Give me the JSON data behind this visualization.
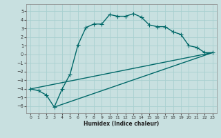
{
  "xlabel": "Humidex (Indice chaleur)",
  "bg_color": "#c8e0e0",
  "grid_color": "#a8d0d0",
  "line_color": "#006868",
  "xlim": [
    -0.5,
    23.5
  ],
  "ylim": [
    -6.8,
    5.8
  ],
  "xticks": [
    0,
    1,
    2,
    3,
    4,
    5,
    6,
    7,
    8,
    9,
    10,
    11,
    12,
    13,
    14,
    15,
    16,
    17,
    18,
    19,
    20,
    21,
    22,
    23
  ],
  "yticks": [
    -6,
    -5,
    -4,
    -3,
    -2,
    -1,
    0,
    1,
    2,
    3,
    4,
    5
  ],
  "series1_x": [
    0,
    1,
    2,
    3,
    4,
    5,
    6,
    7,
    8,
    9,
    10,
    11,
    12,
    13,
    14,
    15,
    16,
    17,
    18,
    19,
    20,
    21,
    22,
    23
  ],
  "series1_y": [
    -4.0,
    -4.2,
    -4.7,
    -6.1,
    -4.0,
    -2.3,
    1.1,
    3.1,
    3.5,
    3.5,
    4.6,
    4.4,
    4.4,
    4.7,
    4.3,
    3.4,
    3.2,
    3.2,
    2.6,
    2.3,
    1.0,
    0.8,
    0.2,
    0.2
  ],
  "series2_x": [
    0,
    23
  ],
  "series2_y": [
    -4.0,
    0.2
  ],
  "series3_x": [
    3,
    23
  ],
  "series3_y": [
    -6.1,
    0.2
  ],
  "marker": "+",
  "markersize": 4,
  "linewidth": 1.0
}
